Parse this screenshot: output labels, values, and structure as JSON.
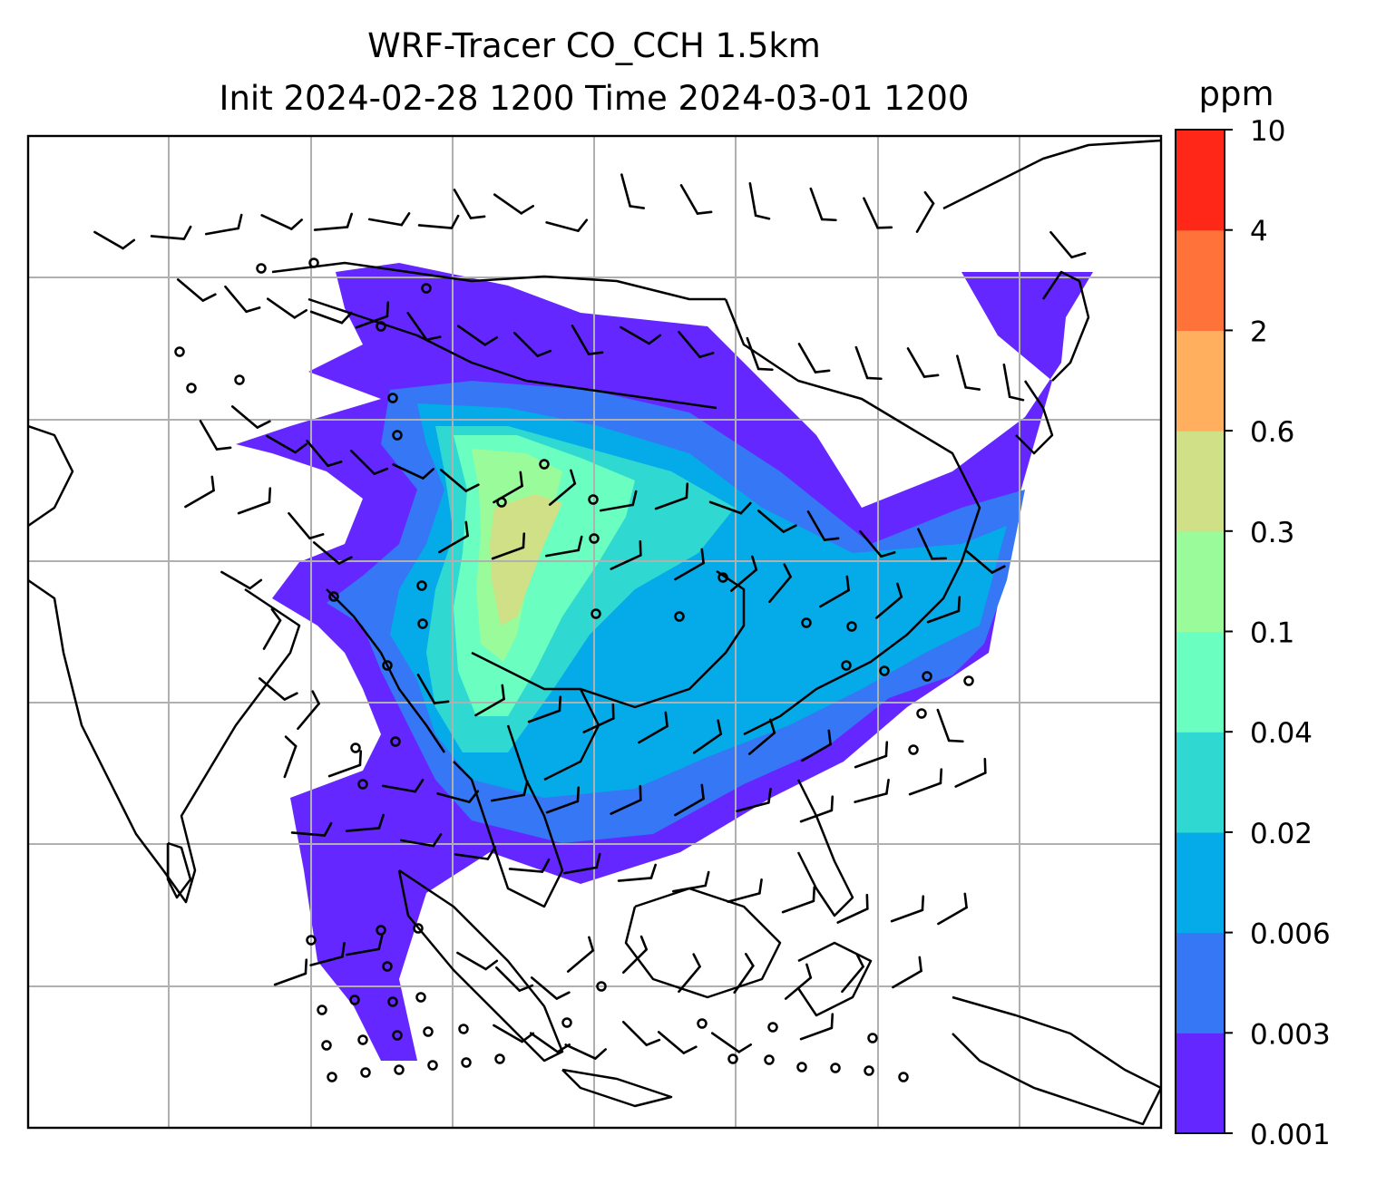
{
  "chart_data": {
    "type": "heatmap",
    "title": "WRF-Tracer CO_CCH 1.5km",
    "subtitle": "Init 2024-02-28 1200 Time 2024-03-01 1200",
    "colorbar": {
      "label": "ppm",
      "levels": [
        "0.001",
        "0.003",
        "0.006",
        "0.02",
        "0.04",
        "0.1",
        "0.3",
        "0.6",
        "2",
        "4",
        "10"
      ],
      "colors": [
        "#6527ff",
        "#3577f5",
        "#05abe8",
        "#2fd9d1",
        "#6affc1",
        "#99fb99",
        "#cfe086",
        "#ffaf5e",
        "#ff733a",
        "#ff2818"
      ]
    },
    "grid": true,
    "overlays": [
      "coastlines",
      "country borders",
      "wind barbs"
    ],
    "plume": {
      "peak_range": "0.3-0.6",
      "core_range": "0.04-0.3",
      "extent_min": "0.001"
    }
  }
}
